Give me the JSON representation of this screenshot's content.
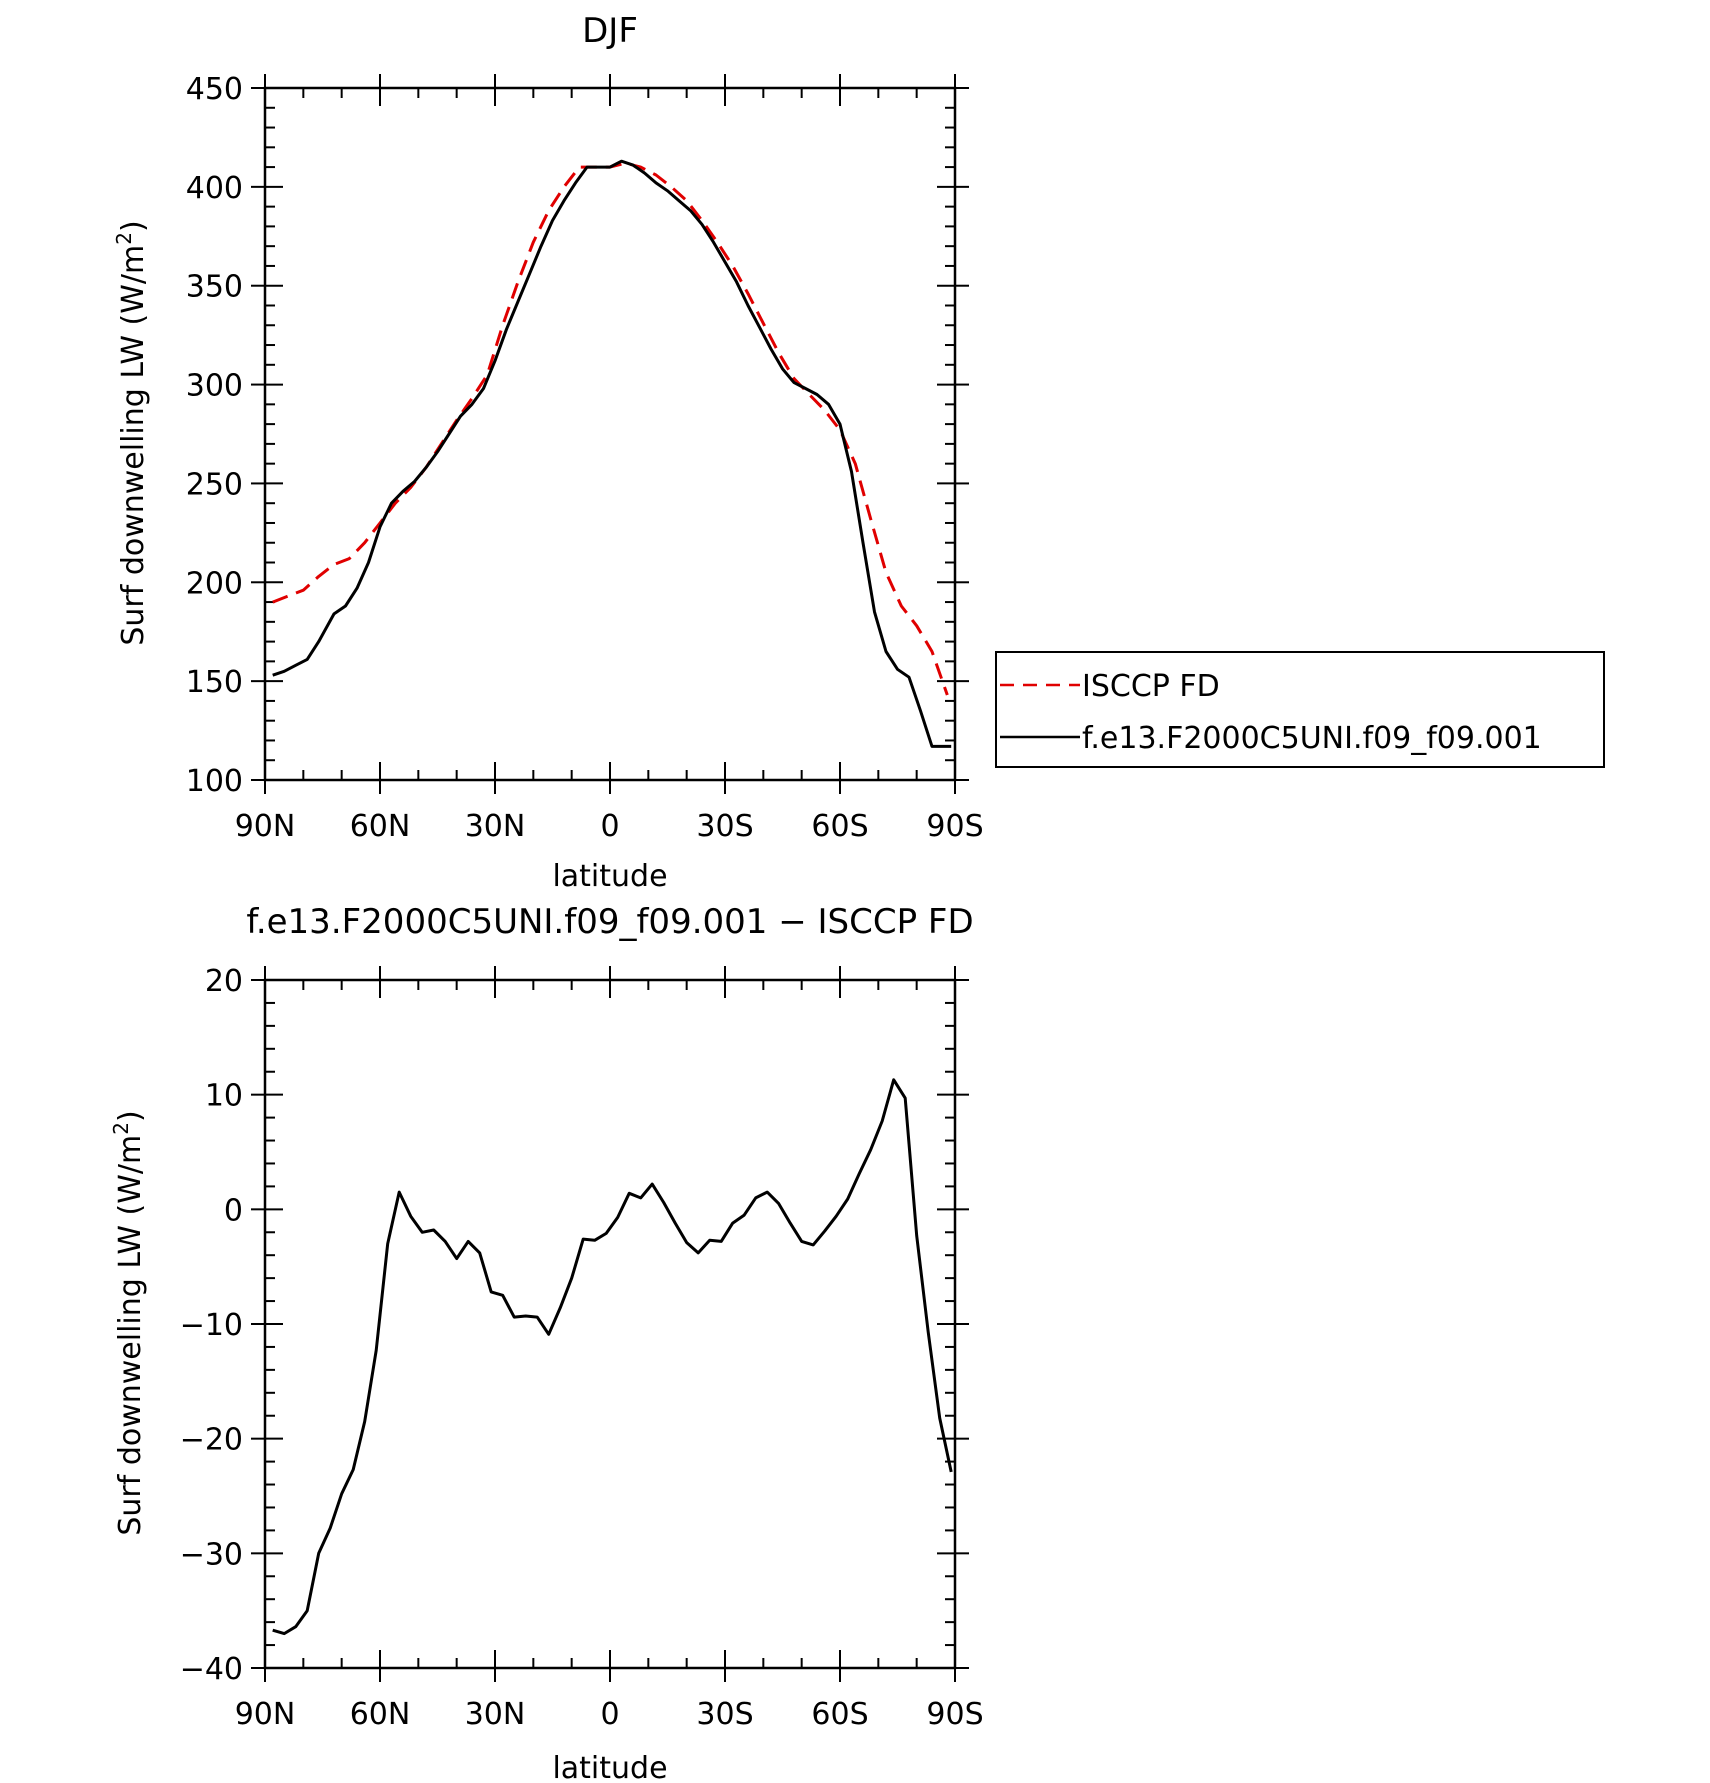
{
  "chart_data": [
    {
      "type": "line",
      "title": "DJF",
      "xlabel": "latitude",
      "ylabel": "Surf downwelling LW (W/m²)",
      "ylabel_main": "Surf downwelling LW (W/m",
      "ylabel_sup": "2",
      "ylabel_close": ")",
      "xlim": [
        90,
        -90
      ],
      "ylim": [
        100,
        450
      ],
      "xticks": [
        {
          "value": 90,
          "label": "90N"
        },
        {
          "value": 60,
          "label": "60N"
        },
        {
          "value": 30,
          "label": "30N"
        },
        {
          "value": 0,
          "label": "0"
        },
        {
          "value": -30,
          "label": "30S"
        },
        {
          "value": -60,
          "label": "60S"
        },
        {
          "value": -90,
          "label": "90S"
        }
      ],
      "yticks": [
        100,
        150,
        200,
        250,
        300,
        350,
        400,
        450
      ],
      "yticklabels": [
        "100",
        "150",
        "200",
        "250",
        "300",
        "350",
        "400",
        "450"
      ],
      "grid": false,
      "legend": "outside-right",
      "series": [
        {
          "name": "ISCCP FD",
          "color": "#e00000",
          "style": "dashed",
          "x": [
            88,
            84,
            80,
            76,
            72,
            68,
            64,
            60,
            56,
            52,
            48,
            44,
            40,
            36,
            32,
            28,
            24,
            20,
            16,
            12,
            8,
            4,
            0,
            -4,
            -8,
            -12,
            -16,
            -20,
            -24,
            -28,
            -32,
            -36,
            -40,
            -44,
            -48,
            -52,
            -56,
            -60,
            -64,
            -68,
            -72,
            -76,
            -80,
            -84,
            -88
          ],
          "y": [
            190,
            193,
            196,
            203,
            209,
            212,
            220,
            230,
            240,
            248,
            258,
            270,
            282,
            293,
            305,
            330,
            352,
            372,
            388,
            400,
            410,
            410,
            410,
            412,
            410,
            406,
            400,
            393,
            383,
            372,
            360,
            346,
            331,
            316,
            303,
            295,
            287,
            277,
            260,
            232,
            205,
            188,
            178,
            165,
            143
          ]
        },
        {
          "name": "f.e13.F2000C5UNI.f09_f09.001",
          "color": "#000000",
          "style": "solid",
          "x": [
            88,
            85,
            82,
            79,
            76,
            72,
            69,
            66,
            63,
            60,
            57,
            54,
            51,
            48,
            45,
            42,
            39,
            36,
            33,
            30,
            27,
            24,
            21,
            18,
            15,
            12,
            9,
            6,
            3,
            0,
            -3,
            -6,
            -9,
            -12,
            -15,
            -18,
            -21,
            -24,
            -27,
            -30,
            -33,
            -36,
            -39,
            -42,
            -45,
            -48,
            -51,
            -54,
            -57,
            -60,
            -63,
            -66,
            -69,
            -72,
            -75,
            -78,
            -81,
            -84,
            -87,
            -89
          ],
          "y": [
            153,
            155,
            158,
            161,
            170,
            184,
            188,
            197,
            210,
            228,
            240,
            246,
            251,
            258,
            266,
            275,
            284,
            290,
            298,
            312,
            328,
            342,
            356,
            370,
            383,
            393,
            402,
            410,
            410,
            410,
            413,
            411,
            407,
            402,
            398,
            393,
            388,
            381,
            372,
            362,
            352,
            340,
            329,
            318,
            308,
            301,
            298,
            295,
            290,
            280,
            256,
            220,
            185,
            165,
            156,
            152,
            135,
            117,
            117,
            117
          ]
        }
      ]
    },
    {
      "type": "line",
      "title": "f.e13.F2000C5UNI.f09_f09.001 − ISCCP FD",
      "xlabel": "latitude",
      "ylabel": "Surf downwelling LW (W/m²)",
      "ylabel_main": "Surf downwelling LW (W/m",
      "ylabel_sup": "2",
      "ylabel_close": ")",
      "xlim": [
        90,
        -90
      ],
      "ylim": [
        -40,
        20
      ],
      "xticks": [
        {
          "value": 90,
          "label": "90N"
        },
        {
          "value": 60,
          "label": "60N"
        },
        {
          "value": 30,
          "label": "30N"
        },
        {
          "value": 0,
          "label": "0"
        },
        {
          "value": -30,
          "label": "30S"
        },
        {
          "value": -60,
          "label": "60S"
        },
        {
          "value": -90,
          "label": "90S"
        }
      ],
      "yticks": [
        -40,
        -30,
        -20,
        -10,
        0,
        10,
        20
      ],
      "yticklabels": [
        "−40",
        "−30",
        "−20",
        "−10",
        "0",
        "10",
        "20"
      ],
      "grid": false,
      "series": [
        {
          "color": "#000000",
          "style": "solid",
          "x": [
            88,
            85,
            82,
            79,
            76,
            73,
            70,
            67,
            64,
            61,
            58,
            55,
            52,
            49,
            46,
            43,
            40,
            37,
            34,
            31,
            28,
            25,
            22,
            19,
            16,
            13,
            10,
            7,
            4,
            1,
            -2,
            -5,
            -8,
            -11,
            -14,
            -17,
            -20,
            -23,
            -26,
            -29,
            -32,
            -35,
            -38,
            -41,
            -44,
            -47,
            -50,
            -53,
            -56,
            -59,
            -62,
            -65,
            -68,
            -71,
            -74,
            -77,
            -80,
            -83,
            -86,
            -89
          ],
          "y": [
            -36.7,
            -37,
            -36.4,
            -35,
            -30,
            -27.8,
            -24.8,
            -22.7,
            -18.5,
            -12.3,
            -3,
            1.5,
            -0.6,
            -2,
            -1.8,
            -2.8,
            -4.3,
            -2.8,
            -3.8,
            -7.2,
            -7.5,
            -9.4,
            -9.3,
            -9.4,
            -10.9,
            -8.6,
            -6,
            -2.6,
            -2.7,
            -2.1,
            -0.7,
            1.4,
            1,
            2.2,
            0.6,
            -1.2,
            -2.9,
            -3.8,
            -2.7,
            -2.8,
            -1.2,
            -0.5,
            1,
            1.5,
            0.5,
            -1.2,
            -2.8,
            -3.1,
            -1.9,
            -0.6,
            0.9,
            3.1,
            5.2,
            7.7,
            11.3,
            9.7,
            -2.3,
            -10.7,
            -18.2,
            -22.9
          ]
        }
      ]
    }
  ],
  "colors": {
    "model": "#000000",
    "obs": "#e00000"
  }
}
